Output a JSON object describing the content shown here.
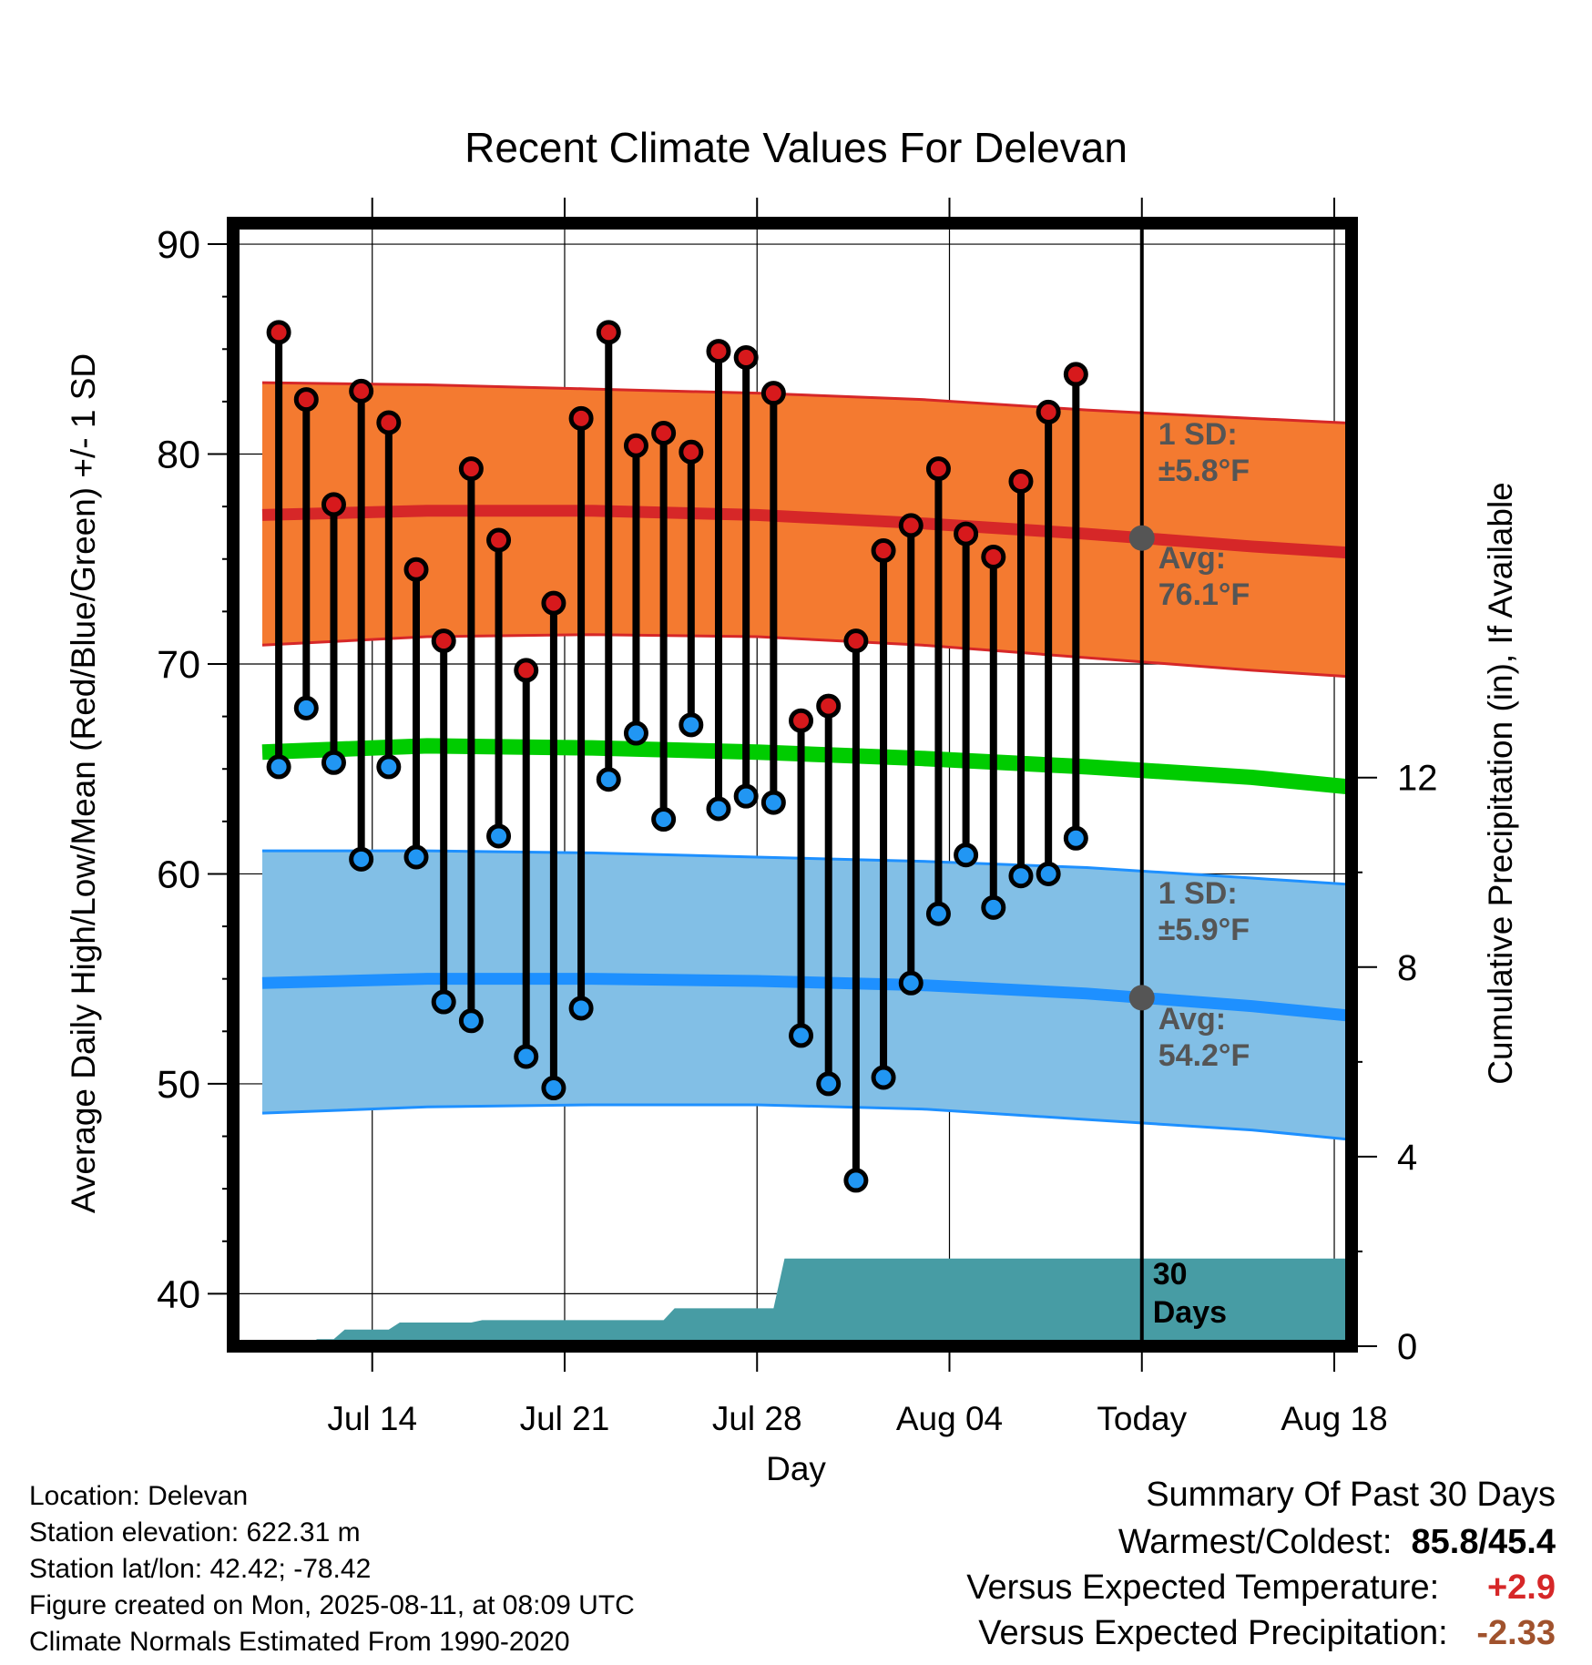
{
  "chart_data": {
    "type": "line",
    "title": "Recent Climate Values For Delevan",
    "xlabel": "Day",
    "ylabel": "Average Daily High/Low/Mean (Red/Blue/Green) +/- 1 SD",
    "y2label": "Cumulative Precipitation (in), If Available",
    "ylim": [
      37.5,
      91
    ],
    "y2lim": [
      0,
      23.7
    ],
    "yticks": [
      "40",
      "50",
      "60",
      "70",
      "80",
      "90"
    ],
    "y2ticks": [
      "0",
      "4",
      "8",
      "12"
    ],
    "xticks": [
      {
        "day": 4,
        "label": "Jul 14"
      },
      {
        "day": 11,
        "label": "Jul 21"
      },
      {
        "day": 18,
        "label": "Jul 28"
      },
      {
        "day": 25,
        "label": "Aug 04"
      },
      {
        "day": 32,
        "label": "Today"
      },
      {
        "day": 39,
        "label": "Aug 18"
      }
    ],
    "day_range": [
      0,
      42
    ],
    "day_note": "day 0 = Jul 10",
    "series": [
      {
        "name": "High",
        "color": "#d7191c",
        "values": [
          85.8,
          82.6,
          77.6,
          83.0,
          81.5,
          74.5,
          71.1,
          79.3,
          75.9,
          69.7,
          72.9,
          81.7,
          85.8,
          80.4,
          81.0,
          80.1,
          84.9,
          84.6,
          82.9,
          67.3,
          68.0,
          71.1,
          75.4,
          76.6,
          79.3,
          76.2,
          75.1,
          78.7,
          82.0,
          83.8
        ]
      },
      {
        "name": "Low",
        "color": "#2196f3",
        "values": [
          65.1,
          67.9,
          65.3,
          60.7,
          65.1,
          60.8,
          53.9,
          53.0,
          61.8,
          51.3,
          49.8,
          53.6,
          64.5,
          66.7,
          62.6,
          67.1,
          63.1,
          63.7,
          63.4,
          52.3,
          50.0,
          45.4,
          50.3,
          54.8,
          58.1,
          60.9,
          58.4,
          59.9,
          60.0,
          61.7
        ]
      },
      {
        "name": "Normal High",
        "color": "#d62728",
        "days": [
          0,
          6,
          12,
          18,
          24,
          30,
          36,
          40.7
        ],
        "values": [
          77.1,
          77.3,
          77.3,
          77.1,
          76.7,
          76.2,
          75.6,
          75.2
        ]
      },
      {
        "name": "Normal High +1 SD",
        "days": [
          0,
          6,
          12,
          18,
          24,
          30,
          36,
          40.7
        ],
        "values": [
          83.4,
          83.3,
          83.1,
          82.9,
          82.6,
          82.1,
          81.7,
          81.4
        ]
      },
      {
        "name": "Normal High -1 SD",
        "days": [
          0,
          6,
          12,
          18,
          24,
          30,
          36,
          40.7
        ],
        "values": [
          70.9,
          71.3,
          71.4,
          71.3,
          70.9,
          70.3,
          69.7,
          69.3
        ]
      },
      {
        "name": "Normal Mean",
        "color": "#00cc00",
        "days": [
          0,
          6,
          12,
          18,
          24,
          30,
          36,
          40.7
        ],
        "values": [
          65.8,
          66.1,
          66.0,
          65.8,
          65.5,
          65.1,
          64.6,
          64.0
        ]
      },
      {
        "name": "Normal Low",
        "color": "#1e90ff",
        "days": [
          0,
          6,
          12,
          18,
          24,
          30,
          36,
          40.7
        ],
        "values": [
          54.8,
          55.0,
          55.0,
          54.9,
          54.7,
          54.3,
          53.7,
          53.1
        ]
      },
      {
        "name": "Normal Low +1 SD",
        "days": [
          0,
          6,
          12,
          18,
          24,
          30,
          36,
          40.7
        ],
        "values": [
          61.1,
          61.1,
          61.0,
          60.8,
          60.6,
          60.3,
          59.8,
          59.4
        ]
      },
      {
        "name": "Normal Low -1 SD",
        "days": [
          0,
          6,
          12,
          18,
          24,
          30,
          36,
          40.7
        ],
        "values": [
          48.6,
          48.9,
          49.0,
          49.0,
          48.8,
          48.3,
          47.8,
          47.2
        ]
      },
      {
        "name": "Cumulative Precipitation",
        "color": "#479ca4",
        "days": [
          0,
          1,
          2,
          3,
          4,
          5,
          6,
          7,
          8,
          9,
          10,
          11,
          12,
          13,
          14,
          15,
          16,
          17,
          18,
          19,
          20,
          21,
          40.7
        ],
        "values": [
          0.0,
          0.05,
          0.15,
          0.35,
          0.35,
          0.5,
          0.5,
          0.5,
          0.55,
          0.55,
          0.55,
          0.55,
          0.55,
          0.55,
          0.55,
          0.8,
          0.8,
          0.8,
          0.8,
          1.85,
          1.85,
          1.85,
          1.85
        ]
      }
    ],
    "annotations": {
      "high_sd": "1 SD:",
      "high_sd_val": "±5.8°F",
      "high_avg": "Avg:",
      "high_avg_val": "76.1°F",
      "low_sd": "1 SD:",
      "low_sd_val": "±5.9°F",
      "low_avg": "Avg:",
      "low_avg_val": "54.2°F",
      "days_num": "30",
      "days_word": "Days"
    }
  },
  "info": {
    "location": "Location: Delevan",
    "elevation": "Station elevation: 622.31 m",
    "latlon": "Station lat/lon: 42.42; -78.42",
    "created": "Figure created on Mon, 2025-08-11, at 08:09 UTC",
    "normals": "Climate Normals Estimated From 1990-2020"
  },
  "summary": {
    "title": "Summary Of Past 30 Days",
    "warmest_label": "Warmest/Coldest:",
    "warmest_value": "85.8/45.4",
    "temp_label": "Versus Expected Temperature:",
    "temp_value": "+2.9",
    "temp_color": "#d62728",
    "precip_label": "Versus Expected Precipitation:",
    "precip_value": "-2.33",
    "precip_color": "#a0522d"
  }
}
